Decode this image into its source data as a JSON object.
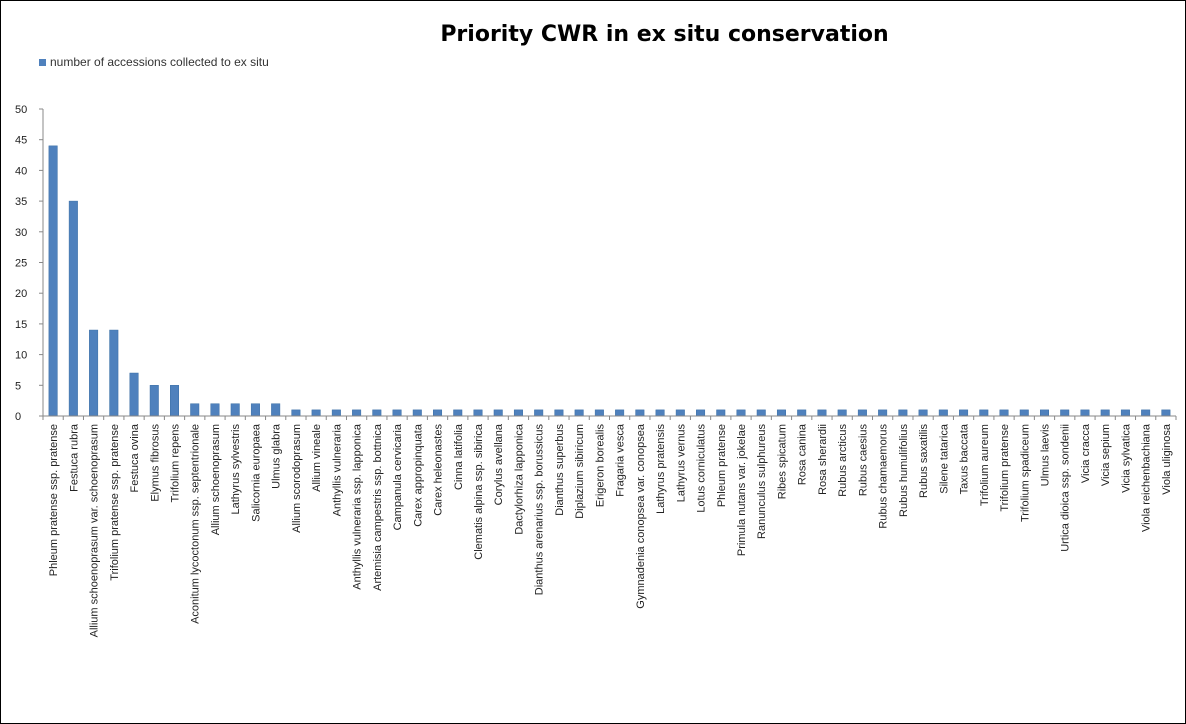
{
  "chart_data": {
    "type": "bar",
    "title": "Priority CWR in ex situ conservation",
    "xlabel": "",
    "ylabel": "",
    "ylim": [
      0,
      50
    ],
    "yticks": [
      0,
      5,
      10,
      15,
      20,
      25,
      30,
      35,
      40,
      45,
      50
    ],
    "grid": false,
    "legend_position": "top-left",
    "bar_color": "#4f81bd",
    "series": [
      {
        "name": "number of accessions collected to ex situ",
        "values": [
          44,
          35,
          14,
          14,
          7,
          5,
          5,
          2,
          2,
          2,
          2,
          2,
          1,
          1,
          1,
          1,
          1,
          1,
          1,
          1,
          1,
          1,
          1,
          1,
          1,
          1,
          1,
          1,
          1,
          1,
          1,
          1,
          1,
          1,
          1,
          1,
          1,
          1,
          1,
          1,
          1,
          1,
          1,
          1,
          1,
          1,
          1,
          1,
          1,
          1,
          1,
          1,
          1,
          1,
          1,
          1
        ]
      }
    ],
    "categories": [
      "Phleum pratense ssp. pratense",
      "Festuca rubra",
      "Allium schoenoprasum var. schoenoprasum",
      "Trifolium pratense ssp. pratense",
      "Festuca ovina",
      "Elymus fibrosus",
      "Trifolium repens",
      "Aconitum lycoctonum ssp. septentrionale",
      "Allium schoenoprasum",
      "Lathyrus sylvestris",
      "Salicornia europaea",
      "Ulmus glabra",
      "Allium scorodoprasum",
      "Allium vineale",
      "Anthyllis vulneraria",
      "Anthyllis vulneraria ssp. lapponica",
      "Artemisia campestris ssp. bottnica",
      "Campanula cervicaria",
      "Carex appropinquata",
      "Carex heleonastes",
      "Cinna latifolia",
      "Clematis alpina ssp. sibirica",
      "Corylus avellana",
      "Dactylorhiza lapponica",
      "Dianthus arenarius ssp. borussicus",
      "Dianthus superbus",
      "Diplazium sibiricum",
      "Erigeron borealis",
      "Fragaria vesca",
      "Gymnadenia conopsea var. conopsea",
      "Lathyrus pratensis",
      "Lathyrus vernus",
      "Lotus corniculatus",
      "Phleum pratense",
      "Primula nutans var. jokelae",
      "Ranunculus sulphureus",
      "Ribes spicatum",
      "Rosa canina",
      "Rosa sherardii",
      "Rubus arcticus",
      "Rubus caesius",
      "Rubus chamaemorus",
      "Rubus humulifolius",
      "Rubus saxatilis",
      "Silene tatarica",
      "Taxus baccata",
      "Trifolium aureum",
      "Trifolium pratense",
      "Trifolium spadiceum",
      "Ulmus laevis",
      "Urtica dioica ssp. sondenii",
      "Vicia cracca",
      "Vicia sepium",
      "Vicia sylvatica",
      "Viola reichenbachiana",
      "Viola uliginosa"
    ]
  }
}
